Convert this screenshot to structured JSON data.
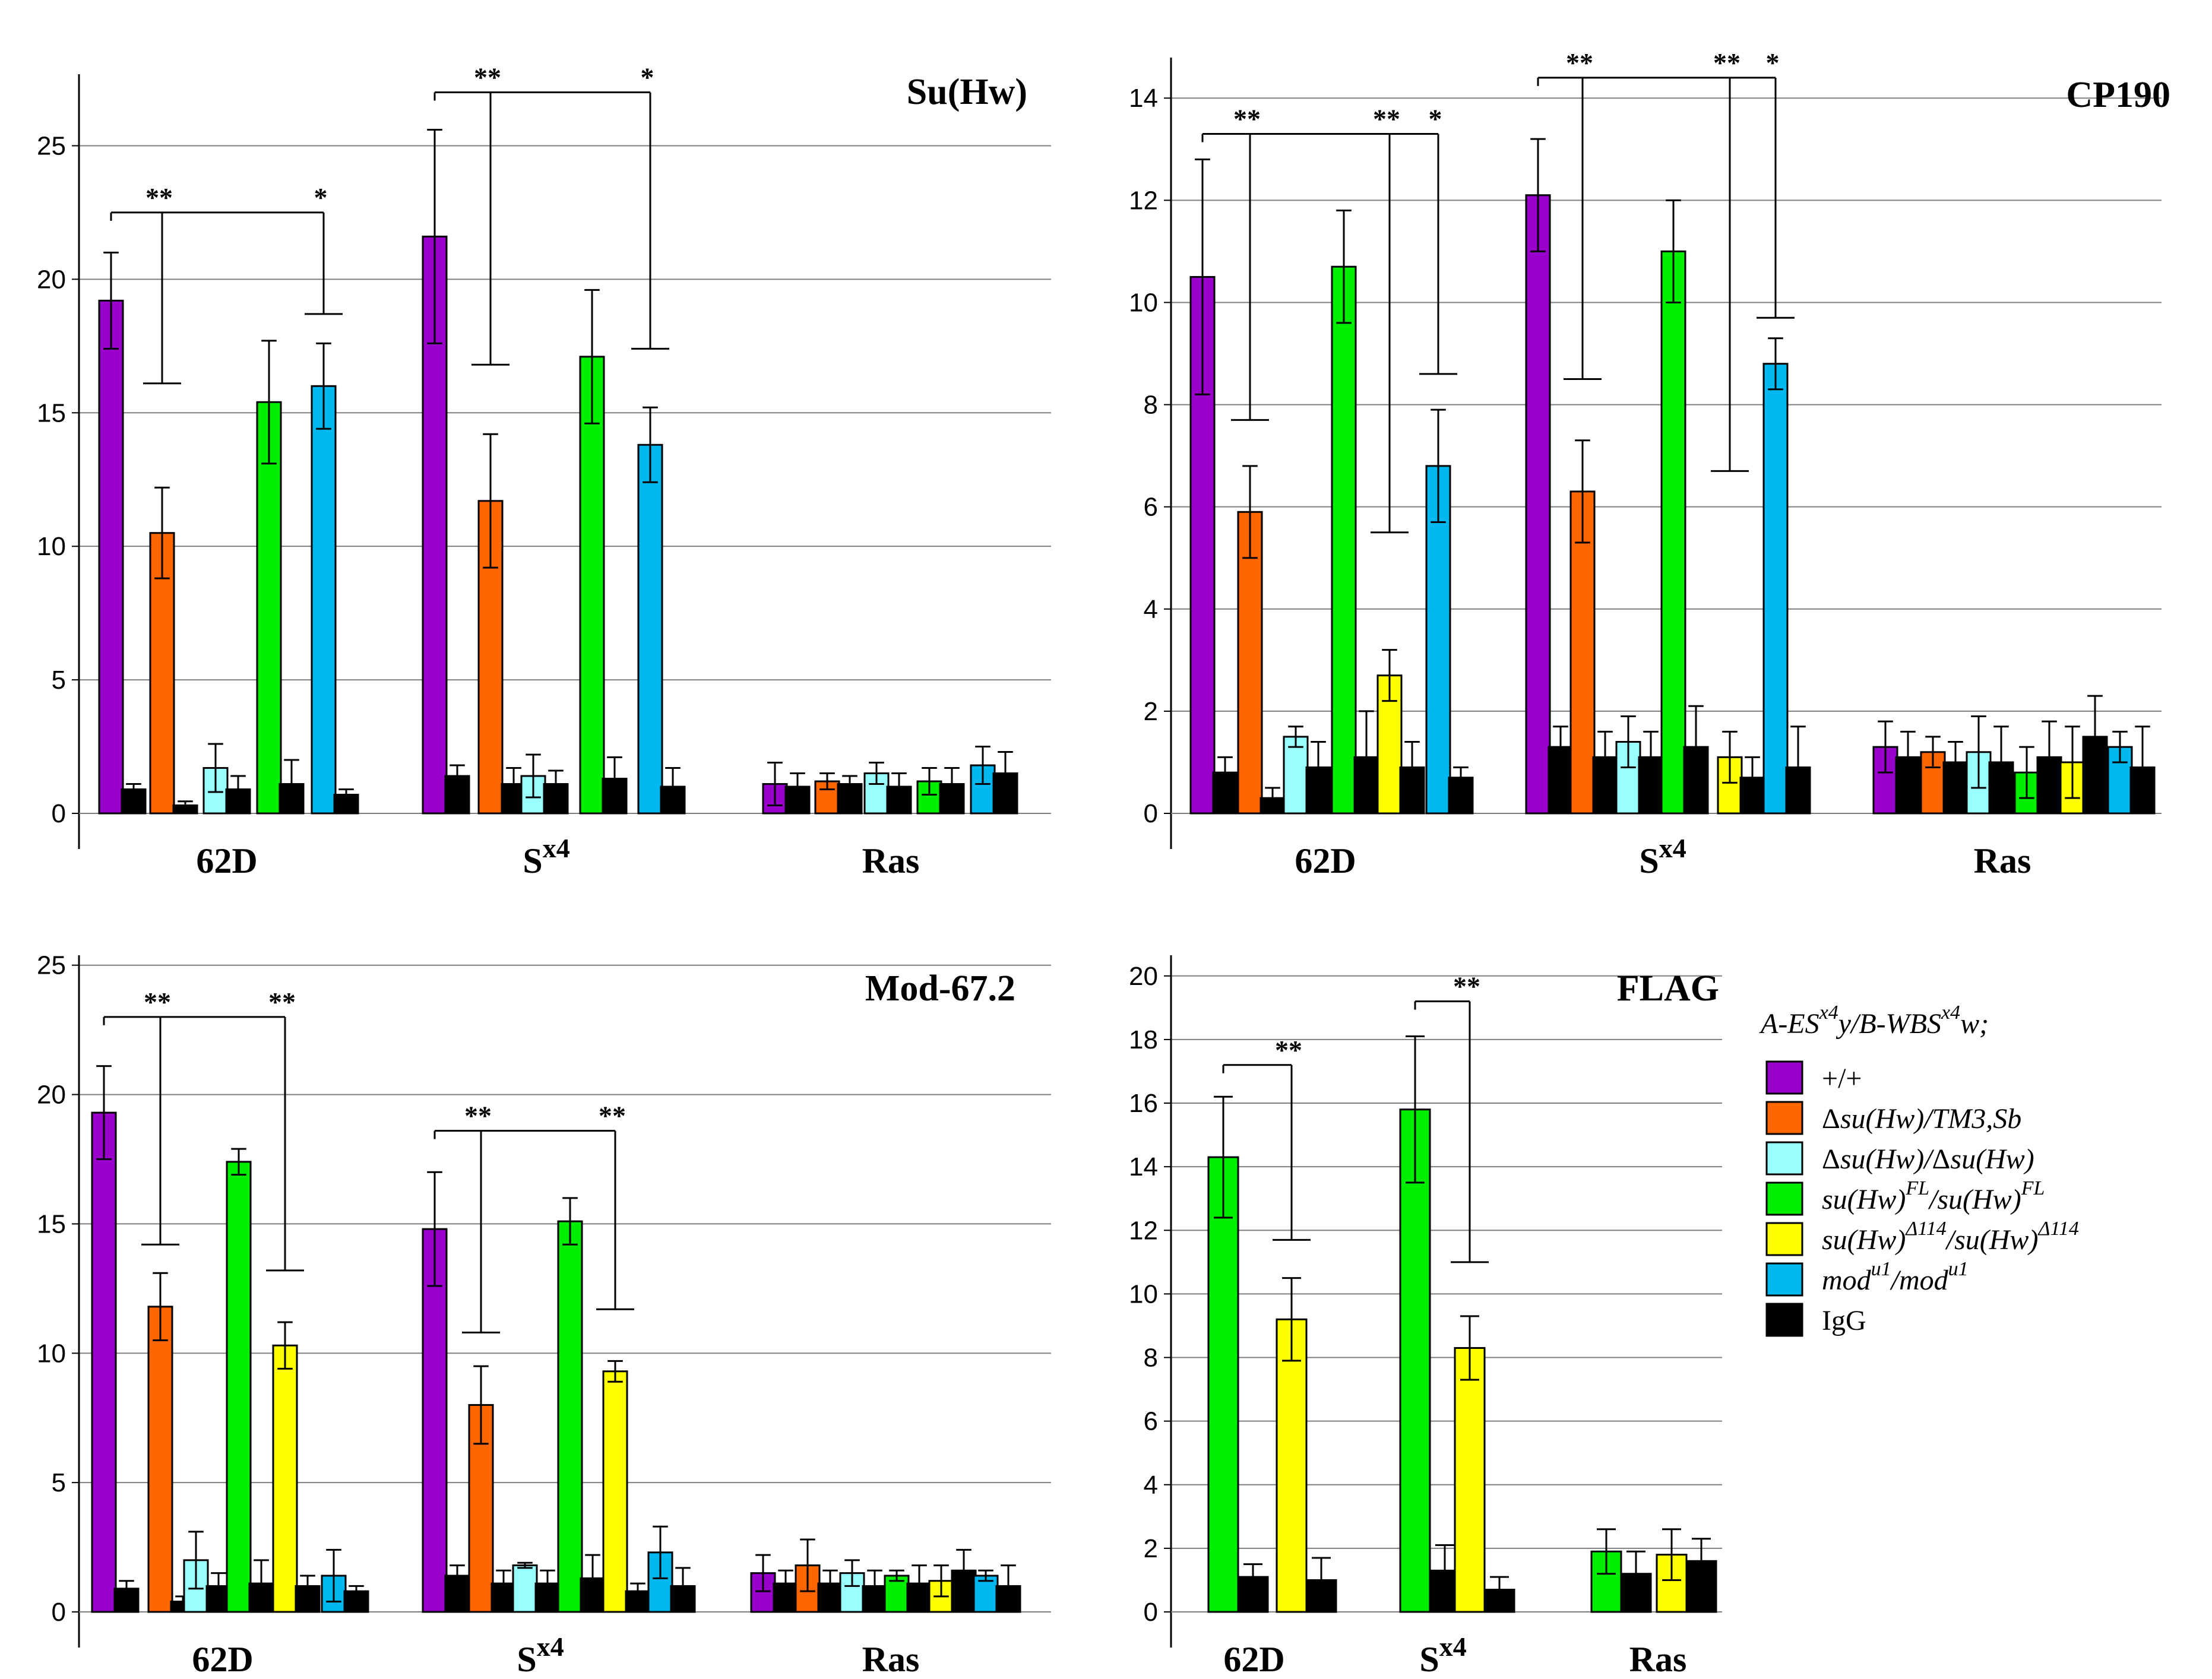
{
  "legend": {
    "title_parts": [
      "A-ES",
      "x4",
      "y/B-WBS",
      "x4",
      "w;"
    ],
    "entries": [
      {
        "key": "wt",
        "color": "#9900CC",
        "parts": [
          {
            "t": "+/+",
            "s": false,
            "i": false
          }
        ]
      },
      {
        "key": "het",
        "color": "#FF6600",
        "parts": [
          {
            "t": "Δ",
            "s": false,
            "i": false
          },
          {
            "t": "su(Hw)/TM3,Sb",
            "s": false,
            "i": true
          }
        ]
      },
      {
        "key": "null",
        "color": "#99FFFF",
        "parts": [
          {
            "t": "Δ",
            "s": false,
            "i": false
          },
          {
            "t": "su(Hw)/",
            "s": false,
            "i": true
          },
          {
            "t": "Δ",
            "s": false,
            "i": false
          },
          {
            "t": "su(Hw)",
            "s": false,
            "i": true
          }
        ]
      },
      {
        "key": "fl",
        "color": "#00EE00",
        "parts": [
          {
            "t": "su(Hw)",
            "s": false,
            "i": true
          },
          {
            "t": "FL",
            "s": true,
            "i": true
          },
          {
            "t": "/su(Hw)",
            "s": false,
            "i": true
          },
          {
            "t": "FL",
            "s": true,
            "i": true
          }
        ]
      },
      {
        "key": "d114",
        "color": "#FFFF00",
        "parts": [
          {
            "t": "su(Hw)",
            "s": false,
            "i": true
          },
          {
            "t": "Δ114",
            "s": true,
            "i": true
          },
          {
            "t": "/su(Hw)",
            "s": false,
            "i": true
          },
          {
            "t": "Δ114",
            "s": true,
            "i": true
          }
        ]
      },
      {
        "key": "mod",
        "color": "#00B8F0",
        "parts": [
          {
            "t": "mod",
            "s": false,
            "i": true
          },
          {
            "t": "u1",
            "s": true,
            "i": true
          },
          {
            "t": "/mod",
            "s": false,
            "i": true
          },
          {
            "t": "u1",
            "s": true,
            "i": true
          }
        ]
      },
      {
        "key": "igg",
        "color": "#000000",
        "parts": [
          {
            "t": "IgG",
            "s": false,
            "i": false
          }
        ]
      }
    ]
  },
  "chart_data": [
    {
      "type": "bar",
      "title": "Su(Hw)",
      "categories": [
        {
          "main": "62D",
          "sup": ""
        },
        {
          "main": "S",
          "sup": "x4"
        },
        {
          "main": "Ras",
          "sup": ""
        }
      ],
      "yticks": [
        0,
        5,
        10,
        15,
        20,
        25
      ],
      "ylim": [
        0,
        27.5
      ],
      "grid": true,
      "bars": [
        [
          {
            "g": "wt",
            "v": 19.2,
            "e": 1.8
          },
          {
            "g": "igg",
            "v": 0.9,
            "e": 0.2
          },
          {
            "g": "het",
            "v": 10.5,
            "e": 1.7
          },
          {
            "g": "igg",
            "v": 0.3,
            "e": 0.15
          },
          {
            "g": "null",
            "v": 1.7,
            "e": 0.9
          },
          {
            "g": "igg",
            "v": 0.9,
            "e": 0.5
          },
          {
            "g": "fl",
            "v": 15.4,
            "e": 2.3
          },
          {
            "g": "igg",
            "v": 1.1,
            "e": 0.9
          },
          {
            "g": "mod",
            "v": 16.0,
            "e": 1.6
          },
          {
            "g": "igg",
            "v": 0.7,
            "e": 0.2
          }
        ],
        [
          {
            "g": "wt",
            "v": 21.6,
            "e": 4.0
          },
          {
            "g": "igg",
            "v": 1.4,
            "e": 0.4
          },
          {
            "g": "het",
            "v": 11.7,
            "e": 2.5
          },
          {
            "g": "igg",
            "v": 1.1,
            "e": 0.6
          },
          {
            "g": "null",
            "v": 1.4,
            "e": 0.8
          },
          {
            "g": "igg",
            "v": 1.1,
            "e": 0.5
          },
          {
            "g": "fl",
            "v": 17.1,
            "e": 2.5
          },
          {
            "g": "igg",
            "v": 1.3,
            "e": 0.8
          },
          {
            "g": "mod",
            "v": 13.8,
            "e": 1.4
          },
          {
            "g": "igg",
            "v": 1.0,
            "e": 0.7
          }
        ],
        [
          {
            "g": "wt",
            "v": 1.1,
            "e": 0.8
          },
          {
            "g": "igg",
            "v": 1.0,
            "e": 0.5
          },
          {
            "g": "het",
            "v": 1.2,
            "e": 0.3
          },
          {
            "g": "igg",
            "v": 1.1,
            "e": 0.3
          },
          {
            "g": "null",
            "v": 1.5,
            "e": 0.4
          },
          {
            "g": "igg",
            "v": 1.0,
            "e": 0.5
          },
          {
            "g": "fl",
            "v": 1.2,
            "e": 0.5
          },
          {
            "g": "igg",
            "v": 1.1,
            "e": 0.6
          },
          {
            "g": "mod",
            "v": 1.8,
            "e": 0.7
          },
          {
            "g": "igg",
            "v": 1.5,
            "e": 0.8
          }
        ]
      ],
      "brackets": [
        {
          "cat": 0,
          "from": 0,
          "y": 22.5,
          "drops": [
            {
              "to": 2,
              "y": 16.1,
              "label": "**"
            },
            {
              "to": 8,
              "y": 18.7,
              "label": "*"
            }
          ]
        },
        {
          "cat": 1,
          "from": 0,
          "y": 27.0,
          "drops": [
            {
              "to": 2,
              "y": 16.8,
              "label": "**"
            },
            {
              "to": 8,
              "y": 17.4,
              "label": "*"
            }
          ]
        }
      ]
    },
    {
      "type": "bar",
      "title": "CP190",
      "categories": [
        {
          "main": "62D",
          "sup": ""
        },
        {
          "main": "S",
          "sup": "x4"
        },
        {
          "main": "Ras",
          "sup": ""
        }
      ],
      "yticks": [
        0,
        2,
        4,
        6,
        8,
        10,
        12,
        14
      ],
      "ylim": [
        0,
        14.7
      ],
      "grid": true,
      "bars": [
        [
          {
            "g": "wt",
            "v": 10.5,
            "e": 2.3
          },
          {
            "g": "igg",
            "v": 0.8,
            "e": 0.3
          },
          {
            "g": "het",
            "v": 5.9,
            "e": 0.9
          },
          {
            "g": "igg",
            "v": 0.3,
            "e": 0.2
          },
          {
            "g": "null",
            "v": 1.5,
            "e": 0.2
          },
          {
            "g": "igg",
            "v": 0.9,
            "e": 0.5
          },
          {
            "g": "fl",
            "v": 10.7,
            "e": 1.1
          },
          {
            "g": "igg",
            "v": 1.1,
            "e": 0.9
          },
          {
            "g": "d114",
            "v": 2.7,
            "e": 0.5
          },
          {
            "g": "igg",
            "v": 0.9,
            "e": 0.5
          },
          {
            "g": "mod",
            "v": 6.8,
            "e": 1.1
          },
          {
            "g": "igg",
            "v": 0.7,
            "e": 0.2
          }
        ],
        [
          {
            "g": "wt",
            "v": 12.1,
            "e": 1.1
          },
          {
            "g": "igg",
            "v": 1.3,
            "e": 0.4
          },
          {
            "g": "het",
            "v": 6.3,
            "e": 1.0
          },
          {
            "g": "igg",
            "v": 1.1,
            "e": 0.5
          },
          {
            "g": "null",
            "v": 1.4,
            "e": 0.5
          },
          {
            "g": "igg",
            "v": 1.1,
            "e": 0.5
          },
          {
            "g": "fl",
            "v": 11.0,
            "e": 1.0
          },
          {
            "g": "igg",
            "v": 1.3,
            "e": 0.8
          },
          {
            "g": "d114",
            "v": 1.1,
            "e": 0.5
          },
          {
            "g": "igg",
            "v": 0.7,
            "e": 0.4
          },
          {
            "g": "mod",
            "v": 8.8,
            "e": 0.5
          },
          {
            "g": "igg",
            "v": 0.9,
            "e": 0.8
          }
        ],
        [
          {
            "g": "wt",
            "v": 1.3,
            "e": 0.5
          },
          {
            "g": "igg",
            "v": 1.1,
            "e": 0.5
          },
          {
            "g": "het",
            "v": 1.2,
            "e": 0.3
          },
          {
            "g": "igg",
            "v": 1.0,
            "e": 0.4
          },
          {
            "g": "null",
            "v": 1.2,
            "e": 0.7
          },
          {
            "g": "igg",
            "v": 1.0,
            "e": 0.7
          },
          {
            "g": "fl",
            "v": 0.8,
            "e": 0.5
          },
          {
            "g": "igg",
            "v": 1.1,
            "e": 0.7
          },
          {
            "g": "d114",
            "v": 1.0,
            "e": 0.7
          },
          {
            "g": "igg",
            "v": 1.5,
            "e": 0.8
          },
          {
            "g": "mod",
            "v": 1.3,
            "e": 0.3
          },
          {
            "g": "igg",
            "v": 0.9,
            "e": 0.8
          }
        ]
      ],
      "brackets": [
        {
          "cat": 0,
          "from": 0,
          "y": 13.3,
          "drops": [
            {
              "to": 2,
              "y": 7.7,
              "label": "**"
            },
            {
              "to": 8,
              "y": 5.5,
              "label": "**"
            },
            {
              "to": 10,
              "y": 8.6,
              "label": "*"
            }
          ]
        },
        {
          "cat": 1,
          "from": 0,
          "y": 14.4,
          "drops": [
            {
              "to": 2,
              "y": 8.5,
              "label": "**"
            },
            {
              "to": 8,
              "y": 6.7,
              "label": "**"
            },
            {
              "to": 10,
              "y": 9.7,
              "label": "*"
            }
          ]
        }
      ]
    },
    {
      "type": "bar",
      "title": "Mod-67.2",
      "categories": [
        {
          "main": "62D",
          "sup": ""
        },
        {
          "main": "S",
          "sup": "x4"
        },
        {
          "main": "Ras",
          "sup": ""
        }
      ],
      "yticks": [
        0,
        5,
        10,
        15,
        20,
        25
      ],
      "ylim": [
        0,
        25.2
      ],
      "grid": true,
      "bars": [
        [
          {
            "g": "wt",
            "v": 19.3,
            "e": 1.8
          },
          {
            "g": "igg",
            "v": 0.9,
            "e": 0.3
          },
          {
            "g": "het",
            "v": 11.8,
            "e": 1.3
          },
          {
            "g": "igg",
            "v": 0.4,
            "e": 0.2
          },
          {
            "g": "null",
            "v": 2.0,
            "e": 1.1
          },
          {
            "g": "igg",
            "v": 1.0,
            "e": 0.5
          },
          {
            "g": "fl",
            "v": 17.4,
            "e": 0.5
          },
          {
            "g": "igg",
            "v": 1.1,
            "e": 0.9
          },
          {
            "g": "d114",
            "v": 10.3,
            "e": 0.9
          },
          {
            "g": "igg",
            "v": 1.0,
            "e": 0.4
          },
          {
            "g": "mod",
            "v": 1.4,
            "e": 1.0
          },
          {
            "g": "igg",
            "v": 0.8,
            "e": 0.2
          }
        ],
        [
          {
            "g": "wt",
            "v": 14.8,
            "e": 2.2
          },
          {
            "g": "igg",
            "v": 1.4,
            "e": 0.4
          },
          {
            "g": "het",
            "v": 8.0,
            "e": 1.5
          },
          {
            "g": "igg",
            "v": 1.1,
            "e": 0.5
          },
          {
            "g": "null",
            "v": 1.8,
            "e": 0.1
          },
          {
            "g": "igg",
            "v": 1.1,
            "e": 0.5
          },
          {
            "g": "fl",
            "v": 15.1,
            "e": 0.9
          },
          {
            "g": "igg",
            "v": 1.3,
            "e": 0.9
          },
          {
            "g": "d114",
            "v": 9.3,
            "e": 0.4
          },
          {
            "g": "igg",
            "v": 0.8,
            "e": 0.3
          },
          {
            "g": "mod",
            "v": 2.3,
            "e": 1.0
          },
          {
            "g": "igg",
            "v": 1.0,
            "e": 0.7
          }
        ],
        [
          {
            "g": "wt",
            "v": 1.5,
            "e": 0.7
          },
          {
            "g": "igg",
            "v": 1.1,
            "e": 0.5
          },
          {
            "g": "het",
            "v": 1.8,
            "e": 1.0
          },
          {
            "g": "igg",
            "v": 1.1,
            "e": 0.5
          },
          {
            "g": "null",
            "v": 1.5,
            "e": 0.5
          },
          {
            "g": "igg",
            "v": 1.0,
            "e": 0.6
          },
          {
            "g": "fl",
            "v": 1.4,
            "e": 0.2
          },
          {
            "g": "igg",
            "v": 1.1,
            "e": 0.7
          },
          {
            "g": "d114",
            "v": 1.2,
            "e": 0.6
          },
          {
            "g": "igg",
            "v": 1.6,
            "e": 0.8
          },
          {
            "g": "mod",
            "v": 1.4,
            "e": 0.2
          },
          {
            "g": "igg",
            "v": 1.0,
            "e": 0.8
          }
        ]
      ],
      "brackets": [
        {
          "cat": 0,
          "from": 0,
          "y": 23.0,
          "drops": [
            {
              "to": 2,
              "y": 14.2,
              "label": "**"
            },
            {
              "to": 8,
              "y": 13.2,
              "label": "**"
            }
          ]
        },
        {
          "cat": 1,
          "from": 0,
          "y": 18.6,
          "drops": [
            {
              "to": 2,
              "y": 10.8,
              "label": "**"
            },
            {
              "to": 8,
              "y": 11.7,
              "label": "**"
            }
          ]
        }
      ]
    },
    {
      "type": "bar",
      "title": "FLAG",
      "categories": [
        {
          "main": "62D",
          "sup": ""
        },
        {
          "main": "S",
          "sup": "x4"
        },
        {
          "main": "Ras",
          "sup": ""
        }
      ],
      "yticks": [
        0,
        2,
        4,
        6,
        8,
        10,
        12,
        14,
        16,
        18,
        20
      ],
      "ylim": [
        0,
        20.5
      ],
      "grid": true,
      "bars": [
        [
          {
            "g": "fl",
            "v": 14.3,
            "e": 1.9
          },
          {
            "g": "igg",
            "v": 1.1,
            "e": 0.4
          },
          {
            "g": "d114",
            "v": 9.2,
            "e": 1.3
          },
          {
            "g": "igg",
            "v": 1.0,
            "e": 0.7
          }
        ],
        [
          {
            "g": "fl",
            "v": 15.8,
            "e": 2.3
          },
          {
            "g": "igg",
            "v": 1.3,
            "e": 0.8
          },
          {
            "g": "d114",
            "v": 8.3,
            "e": 1.0
          },
          {
            "g": "igg",
            "v": 0.7,
            "e": 0.4
          }
        ],
        [
          {
            "g": "fl",
            "v": 1.9,
            "e": 0.7
          },
          {
            "g": "igg",
            "v": 1.2,
            "e": 0.7
          },
          {
            "g": "d114",
            "v": 1.8,
            "e": 0.8
          },
          {
            "g": "igg",
            "v": 1.6,
            "e": 0.7
          }
        ]
      ],
      "brackets": [
        {
          "cat": 0,
          "from": 0,
          "y": 17.2,
          "drops": [
            {
              "to": 2,
              "y": 11.7,
              "label": "**"
            }
          ]
        },
        {
          "cat": 1,
          "from": 0,
          "y": 19.2,
          "drops": [
            {
              "to": 2,
              "y": 11.0,
              "label": "**"
            }
          ]
        }
      ]
    }
  ]
}
